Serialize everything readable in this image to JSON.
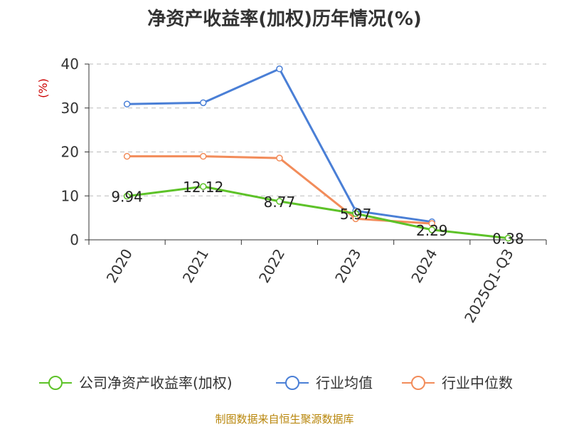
{
  "title": "净资产收益率(加权)历年情况(%)",
  "source": "制图数据来自恒生聚源数据库",
  "chart_data": {
    "type": "line",
    "title": "净资产收益率(加权)历年情况(%)",
    "ylabel": "(%)",
    "xlabel": "",
    "categories": [
      "2020",
      "2021",
      "2022",
      "2023",
      "2024",
      "2025Q1-Q3"
    ],
    "ylim": [
      0,
      40
    ],
    "yticks": [
      0,
      10,
      20,
      30,
      40
    ],
    "grid": true,
    "legend_position": "bottom",
    "series": [
      {
        "name": "公司净资产收益率(加权)",
        "color": "#5dc228",
        "values": [
          9.94,
          12.12,
          8.77,
          5.97,
          2.29,
          0.38
        ],
        "labels": [
          "9.94",
          "12.12",
          "8.77",
          "5.97",
          "2.29",
          "0.38"
        ]
      },
      {
        "name": "行业均值",
        "color": "#4a7fd6",
        "values": [
          30.9,
          31.2,
          38.9,
          6.6,
          4.1,
          null
        ]
      },
      {
        "name": "行业中位数",
        "color": "#f28c5a",
        "values": [
          19.0,
          19.0,
          18.6,
          4.8,
          3.7,
          null
        ]
      }
    ]
  }
}
